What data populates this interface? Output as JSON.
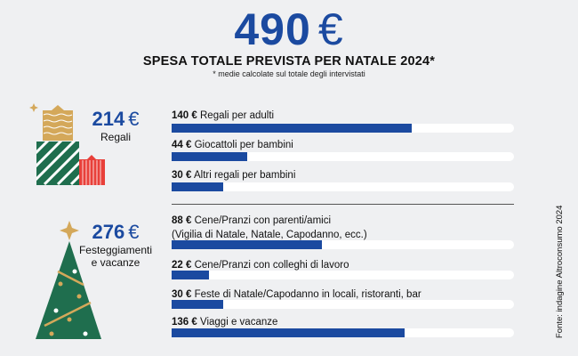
{
  "header": {
    "total_value": "490",
    "currency": "€",
    "title": "SPESA TOTALE PREVISTA PER NATALE 2024*",
    "note": "* medie calcolate sul totale degli intervistati"
  },
  "colors": {
    "accent": "#1b4aa0",
    "green": "#1f6e4e",
    "gold": "#d4a85a",
    "red": "#e8403a"
  },
  "source": "Fonte: indagine Altroconsumo 2024",
  "chart_data": {
    "type": "bar",
    "orientation": "horizontal",
    "unit": "€",
    "xlim": [
      0,
      200
    ],
    "groups": [
      {
        "name": "Regali",
        "total": "214",
        "icon": "gifts-icon",
        "items": [
          {
            "value": 140,
            "label": "Regali per adulti"
          },
          {
            "value": 44,
            "label": "Giocattoli per bambini"
          },
          {
            "value": 30,
            "label": "Altri regali per bambini"
          }
        ]
      },
      {
        "name": "Festeggiamenti e vacanze",
        "total": "276",
        "icon": "christmas-tree-icon",
        "items": [
          {
            "value": 88,
            "label": "Cene/Pranzi con parenti/amici",
            "sublabel": "(Vigilia di Natale, Natale, Capodanno, ecc.)"
          },
          {
            "value": 22,
            "label": "Cene/Pranzi con colleghi di lavoro"
          },
          {
            "value": 30,
            "label": "Feste di Natale/Capodanno in locali, ristoranti, bar"
          },
          {
            "value": 136,
            "label": "Viaggi e vacanze"
          }
        ]
      }
    ]
  }
}
